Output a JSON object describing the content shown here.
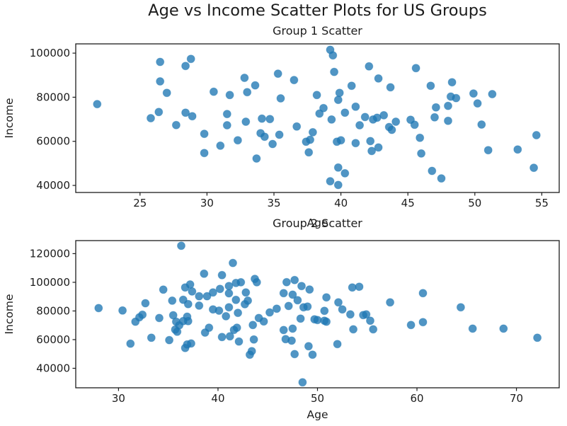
{
  "figure": {
    "title": "Age vs Income Scatter Plots for US Groups",
    "background": "#ffffff",
    "text_color": "#1c1c1c",
    "axis_color": "#1c1c1c",
    "marker_color": "#1f77b4",
    "marker_opacity": 0.78
  },
  "chart_data": [
    {
      "type": "scatter",
      "title": "Group 1 Scatter",
      "xlabel": "Age",
      "ylabel": "Income",
      "legend": "none",
      "grid": false,
      "xlim": [
        20.2,
        56.3
      ],
      "ylim": [
        36800,
        104200
      ],
      "xticks": [
        25,
        30,
        35,
        40,
        45,
        50,
        55
      ],
      "yticks": [
        40000,
        60000,
        80000,
        100000
      ],
      "points": [
        [
          21.8,
          76900
        ],
        [
          25.8,
          70500
        ],
        [
          26.4,
          73300
        ],
        [
          26.5,
          96000
        ],
        [
          26.5,
          87200
        ],
        [
          27.0,
          82000
        ],
        [
          27.7,
          67400
        ],
        [
          28.4,
          94200
        ],
        [
          28.4,
          73000
        ],
        [
          28.8,
          97400
        ],
        [
          28.9,
          71400
        ],
        [
          29.8,
          63400
        ],
        [
          29.8,
          54700
        ],
        [
          30.5,
          82500
        ],
        [
          31.0,
          58000
        ],
        [
          31.5,
          72400
        ],
        [
          31.5,
          67300
        ],
        [
          31.7,
          81000
        ],
        [
          32.3,
          60500
        ],
        [
          32.8,
          88800
        ],
        [
          32.9,
          68900
        ],
        [
          33.0,
          82300
        ],
        [
          33.6,
          85400
        ],
        [
          33.7,
          52200
        ],
        [
          34.0,
          63700
        ],
        [
          34.1,
          70300
        ],
        [
          34.3,
          62100
        ],
        [
          34.7,
          70100
        ],
        [
          34.9,
          58800
        ],
        [
          35.3,
          90700
        ],
        [
          35.4,
          63000
        ],
        [
          35.5,
          79500
        ],
        [
          36.5,
          87800
        ],
        [
          36.7,
          66700
        ],
        [
          37.4,
          59800
        ],
        [
          37.6,
          55000
        ],
        [
          37.7,
          60700
        ],
        [
          37.9,
          64100
        ],
        [
          38.2,
          81000
        ],
        [
          38.4,
          72600
        ],
        [
          38.7,
          75100
        ],
        [
          39.2,
          101500
        ],
        [
          39.2,
          41900
        ],
        [
          39.3,
          69900
        ],
        [
          39.4,
          99000
        ],
        [
          39.5,
          91500
        ],
        [
          39.7,
          59800
        ],
        [
          39.8,
          78800
        ],
        [
          39.8,
          48100
        ],
        [
          39.8,
          40200
        ],
        [
          39.9,
          82000
        ],
        [
          40.0,
          60500
        ],
        [
          40.3,
          73000
        ],
        [
          40.3,
          45500
        ],
        [
          40.8,
          85200
        ],
        [
          41.1,
          75700
        ],
        [
          41.1,
          59200
        ],
        [
          41.4,
          67300
        ],
        [
          41.8,
          71000
        ],
        [
          42.1,
          94000
        ],
        [
          42.2,
          60100
        ],
        [
          42.3,
          55600
        ],
        [
          42.4,
          69900
        ],
        [
          42.7,
          70700
        ],
        [
          42.8,
          88500
        ],
        [
          42.8,
          57200
        ],
        [
          43.2,
          71800
        ],
        [
          43.6,
          66500
        ],
        [
          43.8,
          65200
        ],
        [
          43.7,
          84500
        ],
        [
          44.1,
          68900
        ],
        [
          45.2,
          69800
        ],
        [
          45.5,
          67500
        ],
        [
          45.6,
          93200
        ],
        [
          45.9,
          61600
        ],
        [
          46.0,
          54500
        ],
        [
          46.7,
          85200
        ],
        [
          46.8,
          46600
        ],
        [
          47.0,
          70900
        ],
        [
          47.1,
          75400
        ],
        [
          47.5,
          43200
        ],
        [
          48.0,
          76100
        ],
        [
          48.0,
          69300
        ],
        [
          48.2,
          80300
        ],
        [
          48.6,
          79600
        ],
        [
          48.3,
          86800
        ],
        [
          49.9,
          81700
        ],
        [
          50.2,
          77200
        ],
        [
          50.5,
          67600
        ],
        [
          51.0,
          56000
        ],
        [
          51.3,
          81400
        ],
        [
          53.2,
          56300
        ],
        [
          54.4,
          48000
        ],
        [
          54.6,
          62800
        ]
      ]
    },
    {
      "type": "scatter",
      "title": "Group 2 Scatter",
      "xlabel": "Age",
      "ylabel": "Income",
      "legend": "none",
      "grid": false,
      "xlim": [
        25.7,
        74.3
      ],
      "ylim": [
        26400,
        129100
      ],
      "xticks": [
        30,
        40,
        50,
        60,
        70
      ],
      "yticks": [
        40000,
        60000,
        80000,
        100000,
        120000
      ],
      "points": [
        [
          28.0,
          82000
        ],
        [
          30.4,
          80300
        ],
        [
          31.2,
          57200
        ],
        [
          31.7,
          72500
        ],
        [
          32.1,
          75600
        ],
        [
          32.4,
          77400
        ],
        [
          32.7,
          85400
        ],
        [
          33.3,
          61300
        ],
        [
          34.1,
          75100
        ],
        [
          34.5,
          94900
        ],
        [
          35.1,
          59700
        ],
        [
          35.4,
          87200
        ],
        [
          35.5,
          77000
        ],
        [
          35.7,
          67000
        ],
        [
          35.9,
          65500
        ],
        [
          35.8,
          72500
        ],
        [
          36.1,
          70000
        ],
        [
          36.3,
          125500
        ],
        [
          36.5,
          87800
        ],
        [
          36.5,
          72900
        ],
        [
          36.7,
          96400
        ],
        [
          36.7,
          54200
        ],
        [
          36.9,
          76000
        ],
        [
          36.9,
          56600
        ],
        [
          37.0,
          84800
        ],
        [
          37.0,
          72900
        ],
        [
          37.2,
          98500
        ],
        [
          37.3,
          57300
        ],
        [
          37.4,
          93600
        ],
        [
          38.1,
          90300
        ],
        [
          38.1,
          83700
        ],
        [
          38.6,
          106000
        ],
        [
          38.7,
          64900
        ],
        [
          38.9,
          90300
        ],
        [
          39.1,
          68300
        ],
        [
          39.5,
          92900
        ],
        [
          39.5,
          81100
        ],
        [
          40.1,
          80200
        ],
        [
          40.2,
          95400
        ],
        [
          40.4,
          105000
        ],
        [
          40.4,
          61800
        ],
        [
          40.8,
          76300
        ],
        [
          41.1,
          97400
        ],
        [
          41.1,
          92300
        ],
        [
          41.1,
          82600
        ],
        [
          41.2,
          62300
        ],
        [
          41.5,
          113500
        ],
        [
          41.6,
          66800
        ],
        [
          41.8,
          99500
        ],
        [
          41.8,
          87700
        ],
        [
          41.9,
          68300
        ],
        [
          42.0,
          78700
        ],
        [
          42.1,
          58700
        ],
        [
          42.3,
          100000
        ],
        [
          42.7,
          84700
        ],
        [
          42.8,
          92900
        ],
        [
          43.0,
          87200
        ],
        [
          43.2,
          49500
        ],
        [
          43.4,
          52000
        ],
        [
          43.5,
          70200
        ],
        [
          43.6,
          60100
        ],
        [
          43.7,
          102400
        ],
        [
          43.9,
          100000
        ],
        [
          44.1,
          75100
        ],
        [
          44.6,
          72700
        ],
        [
          45.2,
          79000
        ],
        [
          45.9,
          81600
        ],
        [
          46.6,
          92400
        ],
        [
          46.6,
          66700
        ],
        [
          46.8,
          60300
        ],
        [
          46.9,
          100100
        ],
        [
          47.1,
          83500
        ],
        [
          47.4,
          59300
        ],
        [
          47.5,
          91400
        ],
        [
          47.5,
          67700
        ],
        [
          47.7,
          101600
        ],
        [
          47.7,
          49900
        ],
        [
          48.0,
          87500
        ],
        [
          48.3,
          74700
        ],
        [
          48.4,
          97400
        ],
        [
          48.5,
          30200
        ],
        [
          48.6,
          82600
        ],
        [
          49.0,
          83100
        ],
        [
          49.1,
          55400
        ],
        [
          49.2,
          95000
        ],
        [
          49.5,
          49500
        ],
        [
          49.7,
          74200
        ],
        [
          50.0,
          73700
        ],
        [
          50.7,
          80100
        ],
        [
          50.7,
          73200
        ],
        [
          50.9,
          89500
        ],
        [
          50.9,
          72500
        ],
        [
          52.0,
          56900
        ],
        [
          52.1,
          86000
        ],
        [
          52.5,
          81100
        ],
        [
          53.3,
          77600
        ],
        [
          53.5,
          96400
        ],
        [
          53.6,
          67200
        ],
        [
          54.2,
          96900
        ],
        [
          54.6,
          77100
        ],
        [
          54.9,
          77600
        ],
        [
          55.3,
          73200
        ],
        [
          55.6,
          67200
        ],
        [
          57.3,
          86000
        ],
        [
          59.4,
          70200
        ],
        [
          60.6,
          92400
        ],
        [
          60.6,
          72200
        ],
        [
          64.4,
          82600
        ],
        [
          65.6,
          67700
        ],
        [
          68.7,
          67700
        ],
        [
          72.1,
          61300
        ]
      ]
    }
  ]
}
